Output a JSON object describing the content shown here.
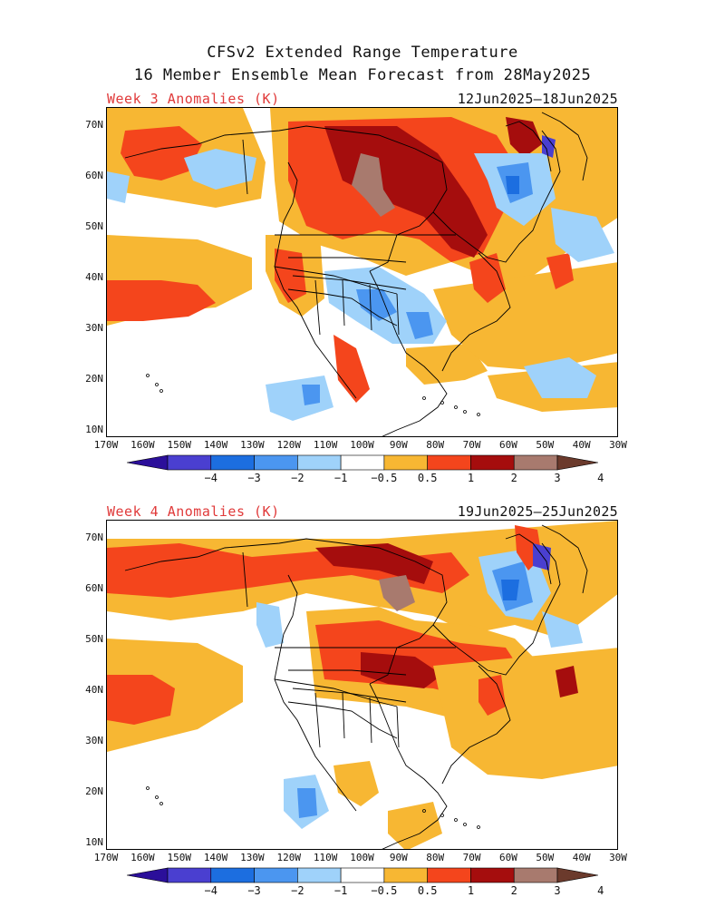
{
  "title": {
    "line1": "CFSv2 Extended Range Temperature",
    "line2": "16 Member Ensemble Mean Forecast from 28May2025"
  },
  "panels": [
    {
      "label": "Week 3 Anomalies (K)",
      "dates": "12Jun2025–18Jun2025"
    },
    {
      "label": "Week 4 Anomalies (K)",
      "dates": "19Jun2025–25Jun2025"
    }
  ],
  "lat_labels": [
    "70N",
    "60N",
    "50N",
    "40N",
    "30N",
    "20N",
    "10N"
  ],
  "lon_labels": [
    "170W",
    "160W",
    "150W",
    "140W",
    "130W",
    "120W",
    "110W",
    "100W",
    "90W",
    "80W",
    "70W",
    "60W",
    "50W",
    "40W",
    "30W"
  ],
  "colorbar": {
    "labels": [
      "−4",
      "−3",
      "−2",
      "−1",
      "−0.5",
      "0.5",
      "1",
      "2",
      "3",
      "4"
    ],
    "colors": [
      "#2b0f9a",
      "#4a3fd0",
      "#1c6ee0",
      "#4b96f0",
      "#9fd2fa",
      "#ffffff",
      "#f7b733",
      "#f4451c",
      "#a50d0d",
      "#a87a6e",
      "#6b3a2c"
    ]
  }
}
